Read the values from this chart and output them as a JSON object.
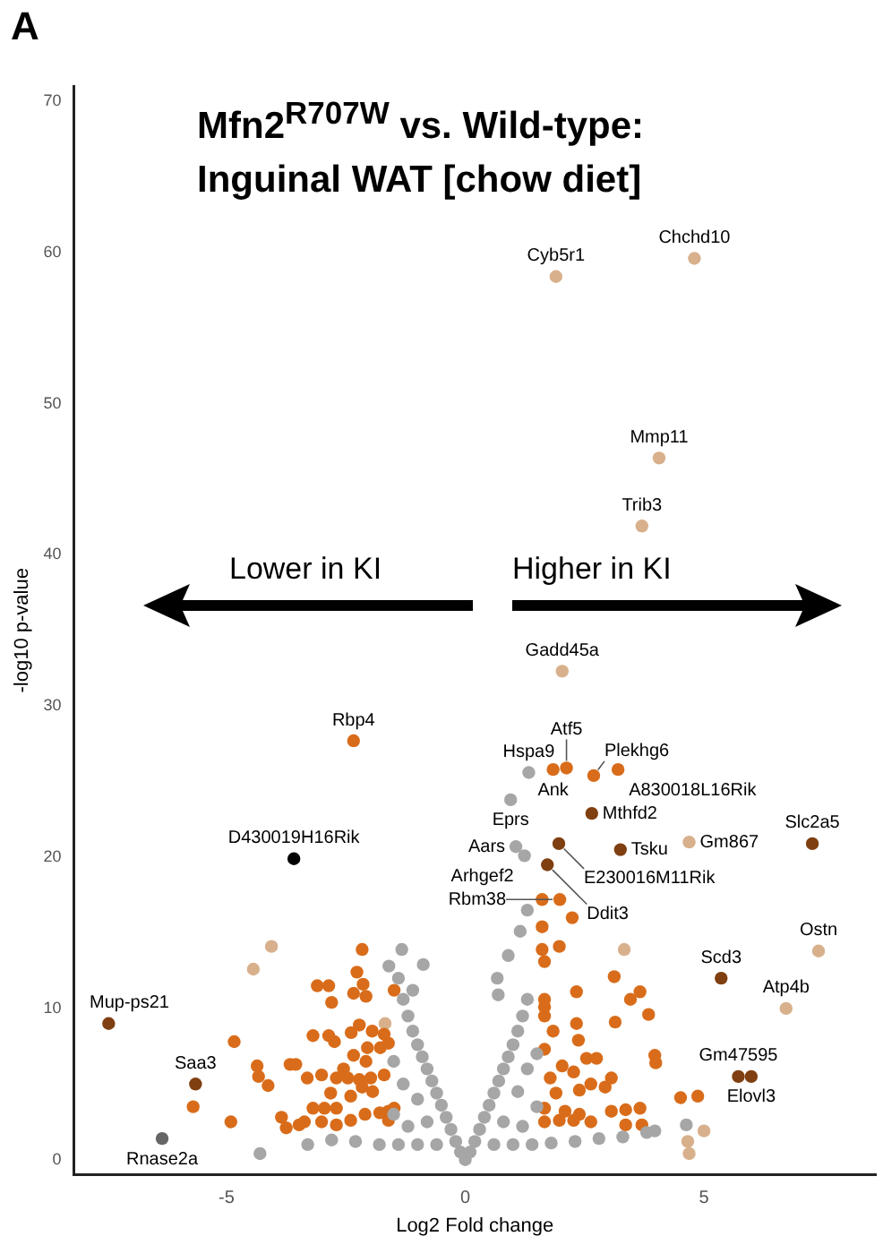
{
  "chart_data": {
    "type": "scatter",
    "title": "Mfn2$^{R707W}$ vs. Wild-type: Inguinal WAT [chow diet]",
    "xlabel": "Log2 Fold change",
    "ylabel": "-log10 p-value",
    "xlim": [
      -8.2,
      8.6
    ],
    "ylim": [
      -1,
      71
    ],
    "xticks": [
      -5,
      0,
      5
    ],
    "yticks": [
      0,
      10,
      20,
      30,
      40,
      50,
      60,
      70
    ],
    "grid": false,
    "legend": false,
    "marker": "circle",
    "series": [
      {
        "color": "#a6a6a6",
        "x": [
          0,
          -0.1,
          0.1,
          -0.2,
          0.2,
          -0.3,
          0.3,
          -0.4,
          0.4,
          -0.5,
          0.5,
          -0.6,
          0.6,
          -0.7,
          0.7,
          -0.8,
          0.8,
          -0.9,
          0.9,
          -1.0,
          1.0,
          -1.1,
          1.1,
          -1.2,
          1.2,
          -1.3,
          1.3,
          -0.6,
          -1.0,
          -1.4,
          -1.8,
          -2.3,
          -2.8,
          -3.3,
          0.6,
          1.0,
          1.4,
          1.8,
          2.3,
          2.8,
          3.3,
          3.8,
          -0.8,
          -1.2,
          -1.5,
          -1.0,
          -1.3,
          -1.5,
          0.8,
          1.2,
          1.5,
          1.1,
          1.3,
          1.5,
          -1.4,
          -1.6,
          -1.33,
          -0.88,
          -1.1,
          0.69,
          0.67,
          0.9,
          1.15,
          1.3,
          3.97,
          4.63,
          -4.3,
          1.33,
          0.95,
          1.06,
          1.24
        ],
        "values": [
          0,
          0.5,
          0.5,
          1.2,
          1.2,
          2,
          2,
          2.8,
          2.8,
          3.6,
          3.6,
          4.4,
          4.4,
          5.2,
          5.2,
          6,
          6,
          6.8,
          6.8,
          7.6,
          7.6,
          8.5,
          8.5,
          9.5,
          9.5,
          10.6,
          10.6,
          1,
          1,
          1,
          1,
          1.2,
          1.3,
          1,
          1,
          1,
          1,
          1.1,
          1.2,
          1.4,
          1.5,
          1.8,
          2.5,
          2.2,
          3,
          4,
          5,
          6.5,
          2.5,
          2.2,
          3.5,
          4.5,
          6,
          7,
          12,
          12.8,
          13.9,
          12.9,
          11.2,
          10.9,
          12,
          13.5,
          15.1,
          16.5,
          1.9,
          2.3,
          0.4,
          25.6,
          23.8,
          20.7,
          20.1
        ]
      },
      {
        "color": "#d96c1a",
        "x": [
          -2.16,
          -2.27,
          -2.14,
          -2.08,
          -2.34,
          -3.1,
          -2.86,
          -2.8,
          -1.49,
          -4.84,
          -4.36,
          -4.33,
          -4.13,
          -3.67,
          -3.55,
          -3.31,
          -3.19,
          -2.86,
          -2.74,
          -2.39,
          -2.22,
          -1.95,
          -1.7,
          -1.61,
          -1.78,
          -2.05,
          -2.08,
          -2.34,
          -2.55,
          -2.7,
          -3.01,
          -2.82,
          -2.46,
          -2.22,
          -1.98,
          -1.7,
          -1.94,
          -2.16,
          -2.4,
          -2.7,
          -2.95,
          -3.19,
          -3.37,
          -3.01,
          -2.7,
          -2.4,
          -2.1,
          -1.79,
          -1.61,
          -1.49,
          -3.85,
          -3.75,
          -3.48,
          -4.91,
          -5.7,
          -1.61,
          1.61,
          1.98,
          2.24,
          1.61,
          1.97,
          1.61,
          1.66,
          3.12,
          2.33,
          3.46,
          3.66,
          1.66,
          1.66,
          1.66,
          3.84,
          2.33,
          3.14,
          1.84,
          2.37,
          1.66,
          2.54,
          2.75,
          3.97,
          3.99,
          2.03,
          2.27,
          3.06,
          1.78,
          2.63,
          1.9,
          2.39,
          2.93,
          4.51,
          4.87,
          1.66,
          2.09,
          2.39,
          3.06,
          3.36,
          3.66,
          1.66,
          1.97,
          2.27,
          2.63,
          3.36,
          3.7,
          -2.34,
          1.84,
          2.12,
          2.69,
          3.2
        ],
        "values": [
          13.9,
          12.4,
          11.6,
          10.8,
          11,
          11.5,
          11.5,
          10.4,
          11.2,
          7.8,
          6.2,
          5.5,
          4.9,
          6.3,
          6.3,
          5.4,
          8.2,
          8.2,
          7.8,
          8.4,
          8.9,
          8.5,
          8.3,
          7.7,
          7.4,
          7.4,
          6.5,
          6.9,
          6,
          5.4,
          5.6,
          4.4,
          5.4,
          5.3,
          5.4,
          5.6,
          4.5,
          4.8,
          4.2,
          3.4,
          3.4,
          3.4,
          2.5,
          2.5,
          2.3,
          2.6,
          3,
          3.1,
          3.2,
          3.4,
          2.8,
          2.1,
          2.3,
          2.5,
          3.5,
          2.6,
          17.2,
          17.2,
          16,
          15.4,
          14.1,
          13.9,
          13.1,
          12.1,
          11.1,
          10.6,
          11.1,
          10.6,
          10.1,
          9.5,
          9.6,
          9,
          9.1,
          8.5,
          7.9,
          7.3,
          6.7,
          6.7,
          6.9,
          6.4,
          6.2,
          5.8,
          5.4,
          5.4,
          5,
          4.4,
          4.6,
          4.8,
          4.1,
          4.2,
          3.4,
          3.2,
          3,
          3.2,
          3.3,
          3.4,
          2.5,
          2.6,
          2.6,
          2.5,
          2.3,
          2.3,
          27.7,
          25.8,
          25.9,
          25.4,
          25.8
        ]
      },
      {
        "color": "#7f3f10",
        "x": [
          2.65,
          1.96,
          1.72,
          -7.47,
          -5.65,
          3.25,
          7.27,
          5.36,
          5.72,
          5.99
        ],
        "values": [
          22.9,
          20.9,
          19.5,
          9,
          5,
          20.5,
          20.9,
          12,
          5.5,
          5.5
        ]
      },
      {
        "color": "#000000",
        "x": [
          -3.59
        ],
        "values": [
          19.9
        ]
      },
      {
        "color": "#666666",
        "x": [
          -6.35
        ],
        "values": [
          1.4
        ]
      },
      {
        "color": "#d8b08c",
        "x": [
          1.9,
          4.8,
          4.06,
          3.7,
          2.03,
          7.4,
          6.72,
          4.69,
          3.33,
          -4.06,
          -4.44,
          -1.68,
          4.66,
          5.0,
          4.69
        ],
        "values": [
          58.4,
          59.6,
          46.4,
          41.9,
          32.3,
          13.8,
          10,
          21,
          13.9,
          14.1,
          12.6,
          9,
          1.2,
          1.9,
          0.4
        ]
      }
    ],
    "annotations": [
      "A",
      "Lower in KI",
      "Higher in KI",
      {
        "text": "Cyb5r1",
        "x": 1.9,
        "y": 58.4
      },
      {
        "text": "Chchd10",
        "x": 4.8,
        "y": 59.6
      },
      {
        "text": "Mmp11",
        "x": 4.06,
        "y": 46.4
      },
      {
        "text": "Trib3",
        "x": 3.7,
        "y": 41.9
      },
      {
        "text": "Gadd45a",
        "x": 2.03,
        "y": 32.3
      },
      {
        "text": "Rbp4",
        "x": -2.34,
        "y": 27.7
      },
      {
        "text": "D430019H16Rik",
        "x": -3.59,
        "y": 19.9
      },
      {
        "text": "Mup-ps21",
        "x": -7.47,
        "y": 9
      },
      {
        "text": "Saa3",
        "x": -5.65,
        "y": 5
      },
      {
        "text": "Rnase2a",
        "x": -6.35,
        "y": 1.4
      },
      {
        "text": "Hspa9",
        "x": 1.33,
        "y": 25.6
      },
      {
        "text": "Eprs",
        "x": 0.95,
        "y": 23.8
      },
      {
        "text": "Aars",
        "x": 1.06,
        "y": 20.7
      },
      {
        "text": "Arhgef2",
        "x": 1.24,
        "y": 20.1
      },
      {
        "text": "Ank",
        "x": 1.84,
        "y": 25.8
      },
      {
        "text": "Atf5",
        "x": 2.12,
        "y": 25.9
      },
      {
        "text": "Plekhg6",
        "x": 2.69,
        "y": 25.4
      },
      {
        "text": "A830018L16Rik",
        "x": 3.2,
        "y": 25.8
      },
      {
        "text": "Mthfd2",
        "x": 2.65,
        "y": 22.9
      },
      {
        "text": "E230016M11Rik",
        "x": 1.96,
        "y": 20.9
      },
      {
        "text": "Ddit3",
        "x": 1.72,
        "y": 19.5
      },
      {
        "text": "Rbm38",
        "x": 1.98,
        "y": 17.2
      },
      {
        "text": "Tsku",
        "x": 3.25,
        "y": 20.5
      },
      {
        "text": "Gm867",
        "x": 4.69,
        "y": 21
      },
      {
        "text": "Slc2a5",
        "x": 7.27,
        "y": 20.9
      },
      {
        "text": "Scd3",
        "x": 5.36,
        "y": 12
      },
      {
        "text": "Ostn",
        "x": 7.4,
        "y": 13.8
      },
      {
        "text": "Atp4b",
        "x": 6.72,
        "y": 10
      },
      {
        "text": "Gm47595",
        "x": 5.72,
        "y": 5.5
      },
      {
        "text": "Elovl3",
        "x": 5.99,
        "y": 5.5
      }
    ]
  }
}
